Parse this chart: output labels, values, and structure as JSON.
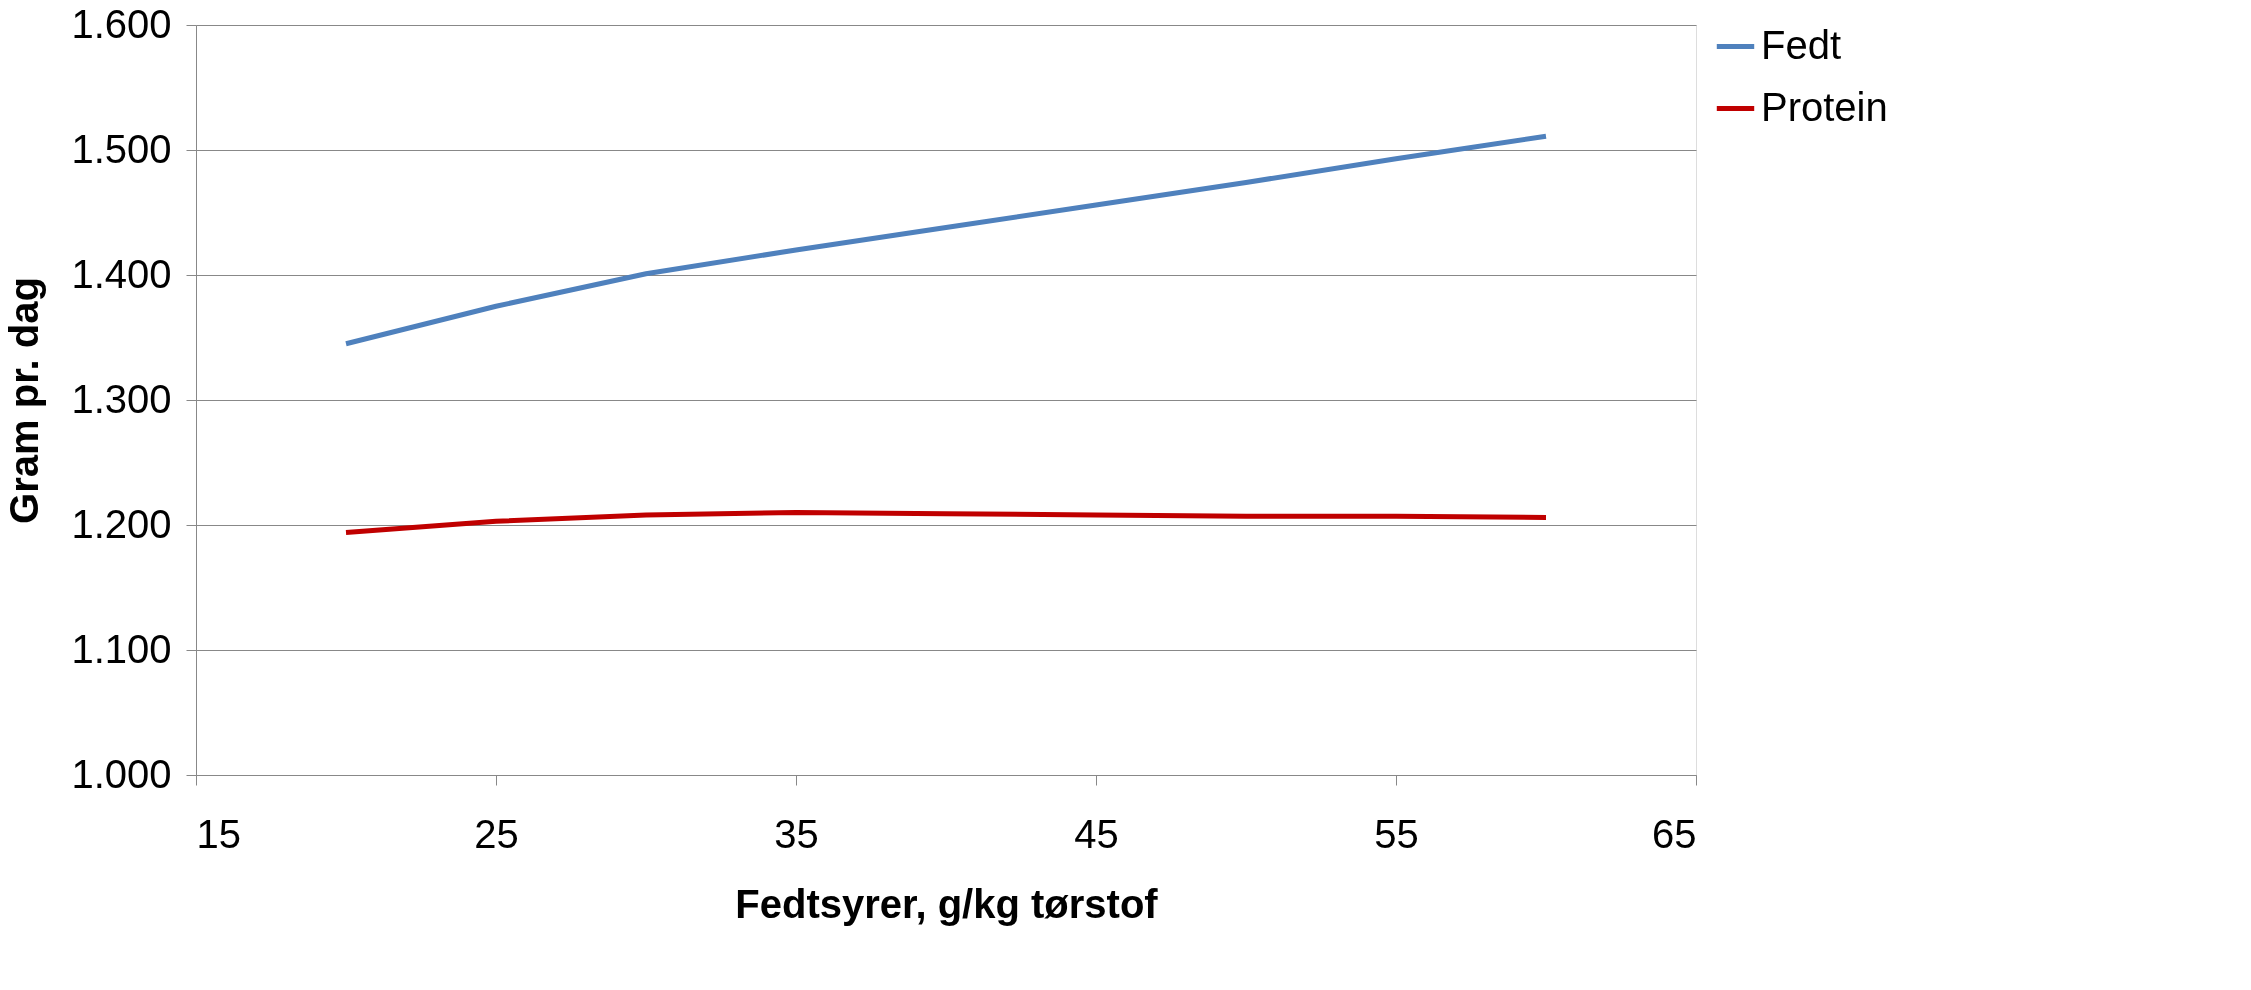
{
  "chart_data": {
    "type": "line",
    "xlabel": "Fedtsyrer, g/kg tørstof",
    "ylabel": "Gram pr. dag",
    "x": [
      20,
      25,
      30,
      35,
      40,
      45,
      50,
      55,
      60
    ],
    "series": [
      {
        "name": "Fedt",
        "color": "#4f81bd",
        "values": [
          1345,
          1375,
          1401,
          1420,
          1438,
          1456,
          1474,
          1493,
          1511
        ]
      },
      {
        "name": "Protein",
        "color": "#c00000",
        "values": [
          1194,
          1203,
          1208,
          1210,
          1209,
          1208,
          1207,
          1207,
          1206
        ]
      }
    ],
    "xlim": [
      15,
      65
    ],
    "xticks": [
      15,
      25,
      35,
      45,
      55,
      65
    ],
    "ylim": [
      1000,
      1600
    ],
    "yticks": [
      {
        "value": 1000,
        "label": "1.000"
      },
      {
        "value": 1100,
        "label": "1.100"
      },
      {
        "value": 1200,
        "label": "1.200"
      },
      {
        "value": 1300,
        "label": "1.300"
      },
      {
        "value": 1400,
        "label": "1.400"
      },
      {
        "value": 1500,
        "label": "1.500"
      },
      {
        "value": 1600,
        "label": "1.600"
      }
    ],
    "grid": "y",
    "legend": "right",
    "marker": "none",
    "line_style": "solid"
  }
}
